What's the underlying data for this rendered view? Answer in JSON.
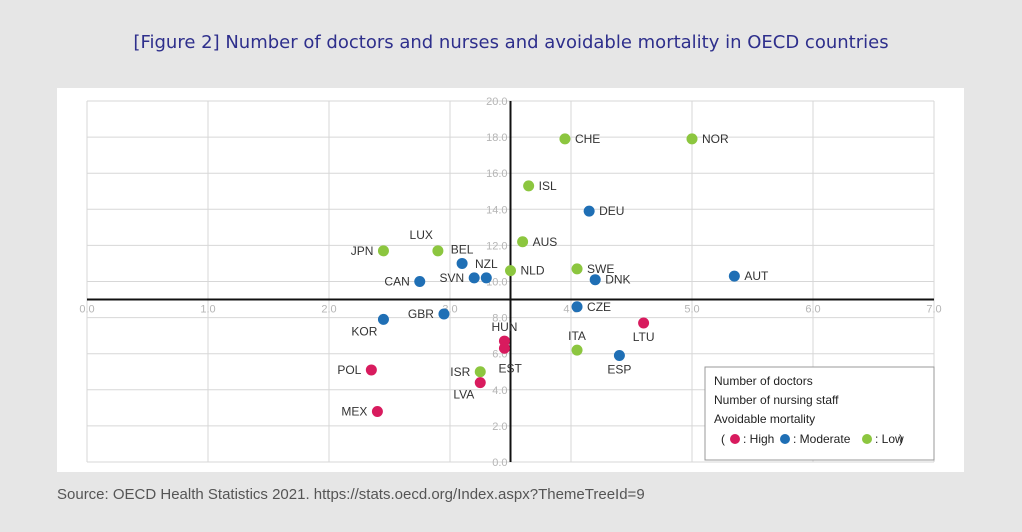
{
  "figure": {
    "title": "[Figure 2] Number of doctors and nurses and avoidable mortality in OECD countries",
    "source": "Source: OECD Health Statistics 2021. https://stats.oecd.org/Index.aspx?ThemeTreeId=9"
  },
  "colors": {
    "high": "#d81b5e",
    "moderate": "#1f6fb5",
    "low": "#8cc63f",
    "title": "#2e2f8c"
  },
  "chart_data": {
    "type": "scatter",
    "xlim": [
      0,
      7
    ],
    "ylim": [
      0,
      20
    ],
    "x_cross": 3.5,
    "y_cross": 9,
    "x_ticks": [
      "0.0",
      "1.0",
      "2.0",
      "3.0",
      "4.0",
      "5.0",
      "6.0",
      "7.0"
    ],
    "y_ticks": [
      "0.0",
      "2.0",
      "4.0",
      "6.0",
      "8.0",
      "10.0",
      "12.0",
      "14.0",
      "16.0",
      "18.0",
      "20.0"
    ],
    "grid": true,
    "legend": {
      "position": "bottom-right",
      "lines": [
        "Number of doctors",
        "Number of nursing staff",
        "Avoidable mortality"
      ],
      "open": "(",
      "close": ")",
      "items": [
        {
          "key": "high",
          "label": ": High"
        },
        {
          "key": "moderate",
          "label": ": Moderate"
        },
        {
          "key": "low",
          "label": ": Low"
        }
      ]
    },
    "points": [
      {
        "label": "CHE",
        "x": 3.95,
        "y": 17.9,
        "mortality": "low",
        "side": "right"
      },
      {
        "label": "NOR",
        "x": 5.0,
        "y": 17.9,
        "mortality": "low",
        "side": "right"
      },
      {
        "label": "ISL",
        "x": 3.65,
        "y": 15.3,
        "mortality": "low",
        "side": "right"
      },
      {
        "label": "DEU",
        "x": 4.15,
        "y": 13.9,
        "mortality": "moderate",
        "side": "right"
      },
      {
        "label": "AUS",
        "x": 3.6,
        "y": 12.2,
        "mortality": "low",
        "side": "right"
      },
      {
        "label": "LUX",
        "x": 2.9,
        "y": 11.7,
        "mortality": "low",
        "side": "above-left"
      },
      {
        "label": "JPN",
        "x": 2.45,
        "y": 11.7,
        "mortality": "low",
        "side": "left"
      },
      {
        "label": "BEL",
        "x": 3.1,
        "y": 11.0,
        "mortality": "moderate",
        "side": "above"
      },
      {
        "label": "NZL",
        "x": 3.3,
        "y": 10.2,
        "mortality": "moderate",
        "side": "above"
      },
      {
        "label": "NLD",
        "x": 3.5,
        "y": 10.6,
        "mortality": "low",
        "side": "right"
      },
      {
        "label": "SWE",
        "x": 4.05,
        "y": 10.7,
        "mortality": "low",
        "side": "right"
      },
      {
        "label": "AUT",
        "x": 5.35,
        "y": 10.3,
        "mortality": "moderate",
        "side": "right"
      },
      {
        "label": "SVN",
        "x": 3.2,
        "y": 10.2,
        "mortality": "moderate",
        "side": "left"
      },
      {
        "label": "CAN",
        "x": 2.75,
        "y": 10.0,
        "mortality": "moderate",
        "side": "left"
      },
      {
        "label": "DNK",
        "x": 4.2,
        "y": 10.1,
        "mortality": "moderate",
        "side": "right"
      },
      {
        "label": "CZE",
        "x": 4.05,
        "y": 8.6,
        "mortality": "moderate",
        "side": "right"
      },
      {
        "label": "LTU",
        "x": 4.6,
        "y": 7.7,
        "mortality": "high",
        "side": "below"
      },
      {
        "label": "GBR",
        "x": 2.95,
        "y": 8.2,
        "mortality": "moderate",
        "side": "left"
      },
      {
        "label": "KOR",
        "x": 2.45,
        "y": 7.9,
        "mortality": "moderate",
        "side": "below-left"
      },
      {
        "label": "HUN",
        "x": 3.45,
        "y": 6.7,
        "mortality": "high",
        "side": "above"
      },
      {
        "label": "ITA",
        "x": 4.05,
        "y": 6.2,
        "mortality": "low",
        "side": "above"
      },
      {
        "label": "ESP",
        "x": 4.4,
        "y": 5.9,
        "mortality": "moderate",
        "side": "below"
      },
      {
        "label": "EST",
        "x": 3.45,
        "y": 6.3,
        "mortality": "high",
        "side": "below-right"
      },
      {
        "label": "ISR",
        "x": 3.25,
        "y": 5.0,
        "mortality": "low",
        "side": "left"
      },
      {
        "label": "LVA",
        "x": 3.25,
        "y": 4.4,
        "mortality": "high",
        "side": "below-left"
      },
      {
        "label": "POL",
        "x": 2.35,
        "y": 5.1,
        "mortality": "high",
        "side": "left"
      },
      {
        "label": "MEX",
        "x": 2.4,
        "y": 2.8,
        "mortality": "high",
        "side": "left"
      }
    ]
  }
}
